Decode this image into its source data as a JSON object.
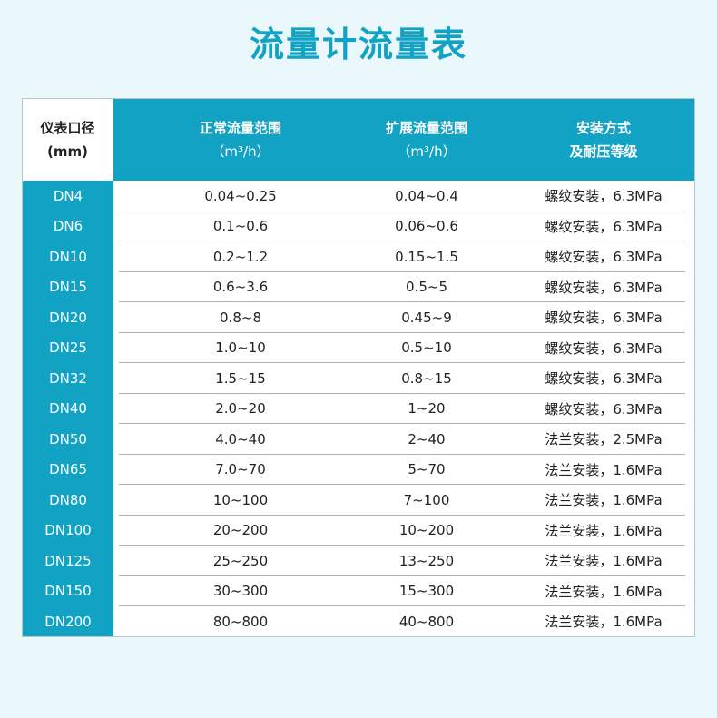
{
  "title": "流量计流量表",
  "header": {
    "col0": {
      "line1": "仪表口径",
      "line2": "(mm)"
    },
    "col1": {
      "line1": "正常流量范围",
      "line2": "（m³/h）"
    },
    "col2": {
      "line1": "扩展流量范围",
      "line2": "（m³/h）"
    },
    "col3": {
      "line1": "安装方式",
      "line2": "及耐压等级"
    }
  },
  "rows": [
    {
      "dn": "DN4",
      "normal": "0.04~0.25",
      "extended": "0.04~0.4",
      "install": "螺纹安装，6.3MPa"
    },
    {
      "dn": "DN6",
      "normal": "0.1~0.6",
      "extended": "0.06~0.6",
      "install": "螺纹安装，6.3MPa"
    },
    {
      "dn": "DN10",
      "normal": "0.2~1.2",
      "extended": "0.15~1.5",
      "install": "螺纹安装，6.3MPa"
    },
    {
      "dn": "DN15",
      "normal": "0.6~3.6",
      "extended": "0.5~5",
      "install": "螺纹安装，6.3MPa"
    },
    {
      "dn": "DN20",
      "normal": "0.8~8",
      "extended": "0.45~9",
      "install": "螺纹安装，6.3MPa"
    },
    {
      "dn": "DN25",
      "normal": "1.0~10",
      "extended": "0.5~10",
      "install": "螺纹安装，6.3MPa"
    },
    {
      "dn": "DN32",
      "normal": "1.5~15",
      "extended": "0.8~15",
      "install": "螺纹安装，6.3MPa"
    },
    {
      "dn": "DN40",
      "normal": "2.0~20",
      "extended": "1~20",
      "install": "螺纹安装，6.3MPa"
    },
    {
      "dn": "DN50",
      "normal": "4.0~40",
      "extended": "2~40",
      "install": "法兰安装，2.5MPa"
    },
    {
      "dn": "DN65",
      "normal": "7.0~70",
      "extended": "5~70",
      "install": "法兰安装，1.6MPa"
    },
    {
      "dn": "DN80",
      "normal": "10~100",
      "extended": "7~100",
      "install": "法兰安装，1.6MPa"
    },
    {
      "dn": "DN100",
      "normal": "20~200",
      "extended": "10~200",
      "install": "法兰安装，1.6MPa"
    },
    {
      "dn": "DN125",
      "normal": "25~250",
      "extended": "13~250",
      "install": "法兰安装，1.6MPa"
    },
    {
      "dn": "DN150",
      "normal": "30~300",
      "extended": "15~300",
      "install": "法兰安装，1.6MPa"
    },
    {
      "dn": "DN200",
      "normal": "80~800",
      "extended": "40~800",
      "install": "法兰安装，1.6MPa"
    }
  ],
  "colors": {
    "accent": "#12a3c4",
    "background": "#eaf8fc",
    "text": "#222222"
  }
}
